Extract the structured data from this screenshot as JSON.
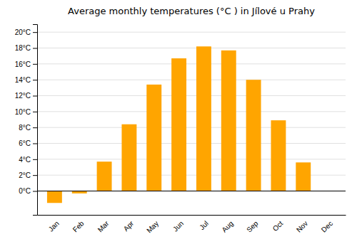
{
  "chart_data": {
    "type": "bar",
    "title": "Average monthly temperatures (°C ) in Jílové u Prahy",
    "categories": [
      "Jan",
      "Feb",
      "Mar",
      "Apr",
      "May",
      "Jun",
      "Jul",
      "Aug",
      "Sep",
      "Oct",
      "Nov",
      "Dec"
    ],
    "values": [
      -1.5,
      -0.3,
      3.7,
      8.4,
      13.4,
      16.7,
      18.2,
      17.7,
      14.0,
      8.9,
      3.6,
      0.0
    ],
    "color": "#FFA500",
    "ylim": [
      -3,
      21
    ],
    "yticks": [
      {
        "value": 0,
        "label": "0°C"
      },
      {
        "value": 2,
        "label": "2°C"
      },
      {
        "value": 4,
        "label": "4°C"
      },
      {
        "value": 6,
        "label": "6°C"
      },
      {
        "value": 8,
        "label": "8°C"
      },
      {
        "value": 10,
        "label": "10°C"
      },
      {
        "value": 12,
        "label": "12°C"
      },
      {
        "value": 14,
        "label": "14°C"
      },
      {
        "value": 16,
        "label": "16°C"
      },
      {
        "value": 18,
        "label": "18°C"
      },
      {
        "value": 20,
        "label": "20°C"
      }
    ],
    "grid": true
  }
}
